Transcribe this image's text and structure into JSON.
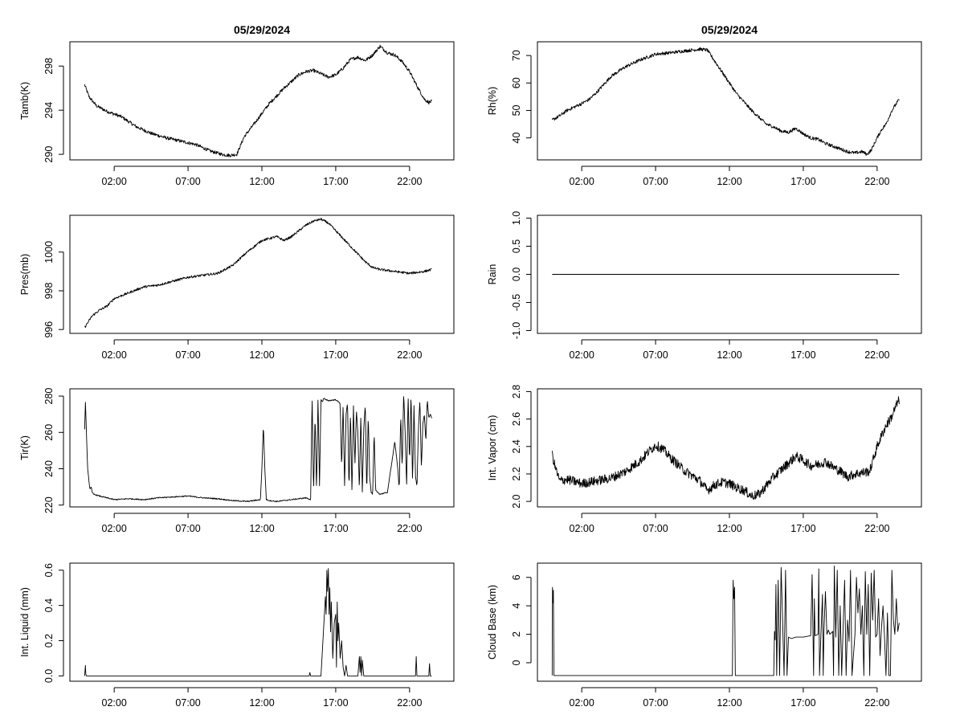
{
  "chart_data": [
    {
      "id": "tamb",
      "type": "line",
      "title": "05/29/2024",
      "ylabel": "Tamb(K)",
      "xlim": [
        -1.0,
        25.0
      ],
      "ylim": [
        289.5,
        300.2
      ],
      "yticks": [
        290,
        294,
        298
      ],
      "ytick_labels": [
        "290",
        "294",
        "298"
      ],
      "xticks": [
        2,
        7,
        12,
        17,
        22
      ],
      "xtick_labels": [
        "02:00",
        "07:00",
        "12:00",
        "17:00",
        "22:00"
      ],
      "noise": 0.15,
      "x": [
        0.0,
        0.3,
        0.8,
        1.5,
        2.5,
        3.5,
        4.5,
        5.5,
        6.5,
        7.5,
        8.5,
        9.3,
        9.8,
        10.3,
        10.8,
        11.5,
        12.5,
        13.5,
        14.5,
        15.0,
        15.5,
        16.0,
        16.5,
        17.0,
        17.5,
        18.0,
        18.5,
        19.0,
        19.5,
        20.0,
        20.5,
        21.0,
        21.5,
        22.0,
        22.5,
        23.0,
        23.3,
        23.5
      ],
      "y": [
        296.3,
        295.2,
        294.4,
        293.9,
        293.4,
        292.5,
        291.9,
        291.5,
        291.2,
        290.9,
        290.3,
        290.0,
        289.9,
        290.0,
        291.6,
        292.8,
        294.6,
        296.0,
        297.2,
        297.5,
        297.6,
        297.3,
        297.0,
        297.2,
        297.8,
        298.6,
        298.8,
        298.5,
        299.0,
        299.8,
        299.2,
        299.0,
        298.4,
        297.5,
        296.2,
        295.0,
        294.7,
        294.8
      ]
    },
    {
      "id": "rh",
      "type": "line",
      "title": "05/29/2024",
      "ylabel": "Rh(%)",
      "xlim": [
        -1.0,
        25.0
      ],
      "ylim": [
        32.0,
        75.0
      ],
      "yticks": [
        40,
        50,
        60,
        70
      ],
      "ytick_labels": [
        "40",
        "50",
        "60",
        "70"
      ],
      "xticks": [
        2,
        7,
        12,
        17,
        22
      ],
      "xtick_labels": [
        "02:00",
        "07:00",
        "12:00",
        "17:00",
        "22:00"
      ],
      "noise": 0.6,
      "x": [
        0.0,
        0.5,
        1.0,
        2.0,
        2.5,
        3.0,
        3.5,
        4.0,
        5.0,
        6.0,
        7.0,
        8.0,
        9.0,
        10.0,
        10.5,
        11.0,
        11.5,
        12.0,
        12.5,
        13.0,
        13.5,
        14.0,
        14.5,
        15.0,
        15.5,
        16.0,
        16.5,
        17.0,
        17.5,
        18.0,
        18.5,
        19.0,
        19.5,
        20.0,
        20.5,
        21.0,
        21.3,
        21.6,
        22.0,
        22.3,
        22.6,
        23.0,
        23.3,
        23.5
      ],
      "y": [
        46.5,
        48.0,
        50.0,
        52.5,
        54.0,
        56.5,
        59.5,
        62.5,
        66.0,
        68.5,
        70.5,
        71.0,
        71.7,
        72.3,
        72.0,
        68.0,
        64.0,
        60.0,
        56.0,
        53.0,
        50.0,
        47.5,
        45.0,
        44.0,
        42.5,
        42.0,
        43.5,
        41.5,
        40.0,
        39.5,
        38.0,
        37.0,
        36.0,
        35.0,
        34.5,
        35.0,
        34.0,
        35.5,
        40.0,
        43.0,
        45.0,
        50.0,
        52.5,
        54.0
      ]
    },
    {
      "id": "pres",
      "type": "line",
      "title": "",
      "ylabel": "Pres(mb)",
      "xlim": [
        -1.0,
        25.0
      ],
      "ylim": [
        995.8,
        1001.9
      ],
      "yticks": [
        996,
        998,
        1000
      ],
      "ytick_labels": [
        "996",
        "998",
        "1000"
      ],
      "xticks": [
        2,
        7,
        12,
        17,
        22
      ],
      "xtick_labels": [
        "02:00",
        "07:00",
        "12:00",
        "17:00",
        "22:00"
      ],
      "noise": 0.06,
      "x": [
        0.0,
        0.5,
        1.0,
        1.5,
        2.0,
        3.0,
        4.0,
        5.0,
        6.0,
        7.0,
        8.0,
        9.0,
        10.0,
        11.0,
        12.0,
        12.5,
        13.0,
        13.5,
        14.0,
        14.5,
        15.0,
        15.5,
        16.0,
        16.5,
        17.0,
        17.5,
        18.0,
        18.5,
        19.0,
        19.5,
        20.0,
        21.0,
        22.0,
        23.0,
        23.5
      ],
      "y": [
        996.1,
        996.7,
        997.0,
        997.2,
        997.6,
        997.9,
        998.2,
        998.3,
        998.5,
        998.7,
        998.8,
        998.9,
        999.3,
        1000.0,
        1000.6,
        1000.7,
        1000.8,
        1000.6,
        1000.8,
        1001.1,
        1001.4,
        1001.6,
        1001.7,
        1001.5,
        1001.1,
        1000.7,
        1000.3,
        999.9,
        999.5,
        999.2,
        999.1,
        999.0,
        998.9,
        999.0,
        999.1
      ]
    },
    {
      "id": "rain",
      "type": "line",
      "title": "",
      "ylabel": "Rain",
      "xlim": [
        -1.0,
        25.0
      ],
      "ylim": [
        -1.05,
        1.05
      ],
      "yticks": [
        -1.0,
        -0.5,
        0.0,
        0.5,
        1.0
      ],
      "ytick_labels": [
        "-1.0",
        "-0.5",
        "0.0",
        "0.5",
        "1.0"
      ],
      "xticks": [
        2,
        7,
        12,
        17,
        22
      ],
      "xtick_labels": [
        "02:00",
        "07:00",
        "12:00",
        "17:00",
        "22:00"
      ],
      "noise": 0.0,
      "x": [
        0.0,
        23.5
      ],
      "y": [
        0.0,
        0.0
      ]
    },
    {
      "id": "tir",
      "type": "line",
      "title": "",
      "ylabel": "Tir(K)",
      "xlim": [
        -1.0,
        25.0
      ],
      "ylim": [
        219.0,
        284.0
      ],
      "yticks": [
        220,
        240,
        260,
        280
      ],
      "ytick_labels": [
        "220",
        "240",
        "260",
        "280"
      ],
      "xticks": [
        2,
        7,
        12,
        17,
        22
      ],
      "xtick_labels": [
        "02:00",
        "07:00",
        "12:00",
        "17:00",
        "22:00"
      ],
      "noise": 0.3,
      "x": [
        0.0,
        0.05,
        0.1,
        0.2,
        0.35,
        0.45,
        0.5,
        0.6,
        1.0,
        2.0,
        3.0,
        4.0,
        5.0,
        6.0,
        7.0,
        8.0,
        9.0,
        10.0,
        11.0,
        11.9,
        12.0,
        12.1,
        12.2,
        12.3,
        12.5,
        13.0,
        14.0,
        15.0,
        15.3,
        15.4,
        15.5,
        15.6,
        15.7,
        15.8,
        15.9,
        16.0,
        16.1,
        16.2,
        16.3,
        16.5,
        17.0,
        17.3,
        17.4,
        17.5,
        17.6,
        17.7,
        17.8,
        17.9,
        18.0,
        18.1,
        18.2,
        18.3,
        18.4,
        18.5,
        18.6,
        18.7,
        18.8,
        18.9,
        19.0,
        19.1,
        19.2,
        19.3,
        19.4,
        19.5,
        19.6,
        19.7,
        20.0,
        20.5,
        21.0,
        21.2,
        21.3,
        21.4,
        21.5,
        21.6,
        21.7,
        21.8,
        21.9,
        22.0,
        22.1,
        22.2,
        22.3,
        22.4,
        22.5,
        22.6,
        22.7,
        22.8,
        22.9,
        23.0,
        23.1,
        23.2,
        23.3,
        23.4,
        23.5
      ],
      "y": [
        262,
        277,
        265,
        240,
        229,
        230,
        227,
        226,
        225,
        223,
        223.5,
        223,
        224,
        224.5,
        225,
        224,
        223.5,
        222.5,
        222,
        223,
        240,
        264,
        240,
        223,
        222.5,
        222,
        223,
        224,
        223,
        280,
        226,
        270,
        228,
        279,
        230,
        278,
        277,
        279,
        278,
        277.5,
        278,
        276,
        240,
        276,
        230,
        270,
        276,
        228,
        272,
        226,
        275,
        242,
        272,
        260,
        228,
        270,
        227,
        262,
        276,
        226,
        270,
        235,
        227,
        226,
        260,
        228,
        226,
        227,
        255,
        240,
        229,
        270,
        240,
        282,
        260,
        230,
        281,
        243,
        282,
        232,
        275,
        236,
        230,
        262,
        278,
        240,
        265,
        270,
        255,
        278,
        268,
        270,
        268
      ]
    },
    {
      "id": "vapor",
      "type": "line",
      "title": "",
      "ylabel": "Int. Vapor (cm)",
      "xlim": [
        -1.0,
        25.0
      ],
      "ylim": [
        1.96,
        2.82
      ],
      "yticks": [
        2.0,
        2.2,
        2.4,
        2.6,
        2.8
      ],
      "ytick_labels": [
        "2.0",
        "2.2",
        "2.4",
        "2.6",
        "2.8"
      ],
      "xticks": [
        2,
        7,
        12,
        17,
        22
      ],
      "xtick_labels": [
        "02:00",
        "07:00",
        "12:00",
        "17:00",
        "22:00"
      ],
      "noise": 0.035,
      "x": [
        0.0,
        0.2,
        0.5,
        1.0,
        2.0,
        3.0,
        4.0,
        5.0,
        6.0,
        6.5,
        7.0,
        7.5,
        8.0,
        9.0,
        10.0,
        10.5,
        11.0,
        11.5,
        12.0,
        12.5,
        13.0,
        13.5,
        14.0,
        15.0,
        16.0,
        16.5,
        17.0,
        17.5,
        18.0,
        18.5,
        19.0,
        19.5,
        20.0,
        20.5,
        21.0,
        21.5,
        22.0,
        22.3,
        22.6,
        23.0,
        23.3,
        23.5
      ],
      "y": [
        2.34,
        2.25,
        2.15,
        2.16,
        2.13,
        2.15,
        2.17,
        2.22,
        2.3,
        2.36,
        2.41,
        2.38,
        2.32,
        2.22,
        2.15,
        2.08,
        2.12,
        2.14,
        2.13,
        2.1,
        2.08,
        2.04,
        2.05,
        2.18,
        2.28,
        2.33,
        2.3,
        2.26,
        2.27,
        2.29,
        2.25,
        2.22,
        2.18,
        2.2,
        2.21,
        2.22,
        2.4,
        2.48,
        2.55,
        2.62,
        2.7,
        2.74
      ]
    },
    {
      "id": "liquid",
      "type": "line",
      "title": "",
      "ylabel": "Int. Liquid (mm)",
      "xlim": [
        -1.0,
        25.0
      ],
      "ylim": [
        -0.03,
        0.64
      ],
      "yticks": [
        0.0,
        0.2,
        0.4,
        0.6
      ],
      "ytick_labels": [
        "0.0",
        "0.2",
        "0.4",
        "0.6"
      ],
      "xticks": [
        2,
        7,
        12,
        17,
        22
      ],
      "xtick_labels": [
        "02:00",
        "07:00",
        "12:00",
        "17:00",
        "22:00"
      ],
      "noise": 0.0,
      "x": [
        0.0,
        0.05,
        0.08,
        0.12,
        15.2,
        15.25,
        15.3,
        16.0,
        16.1,
        16.2,
        16.3,
        16.35,
        16.4,
        16.45,
        16.5,
        16.55,
        16.6,
        16.65,
        16.7,
        16.8,
        16.9,
        17.0,
        17.05,
        17.1,
        17.15,
        17.2,
        17.3,
        17.4,
        17.5,
        17.6,
        17.7,
        17.8,
        17.9,
        18.5,
        18.6,
        18.65,
        18.7,
        18.75,
        18.8,
        18.9,
        22.4,
        22.45,
        22.5,
        23.3,
        23.35,
        23.4,
        23.5
      ],
      "y": [
        0.0,
        0.06,
        0.01,
        0.0,
        0.0,
        0.02,
        0.0,
        0.0,
        0.15,
        0.3,
        0.45,
        0.35,
        0.6,
        0.48,
        0.61,
        0.35,
        0.5,
        0.25,
        0.42,
        0.1,
        0.3,
        0.35,
        0.05,
        0.42,
        0.2,
        0.3,
        0.1,
        0.2,
        0.05,
        0.0,
        0.06,
        0.0,
        0.0,
        0.0,
        0.11,
        0.02,
        0.11,
        0.0,
        0.09,
        0.0,
        0.0,
        0.11,
        0.0,
        0.0,
        0.07,
        0.0,
        0.0
      ]
    },
    {
      "id": "cloud",
      "type": "line",
      "title": "",
      "ylabel": "Cloud Base (km)",
      "xlim": [
        -1.0,
        25.0
      ],
      "ylim": [
        -1.3,
        7.0
      ],
      "yticks": [
        0,
        2,
        4,
        6
      ],
      "ytick_labels": [
        "0",
        "2",
        "4",
        "6"
      ],
      "xticks": [
        2,
        7,
        12,
        17,
        22
      ],
      "xtick_labels": [
        "02:00",
        "07:00",
        "12:00",
        "17:00",
        "22:00"
      ],
      "noise": 0.0,
      "x": [
        0.0,
        0.02,
        0.05,
        0.08,
        0.12,
        0.15,
        12.2,
        12.25,
        12.3,
        12.35,
        12.4,
        15.0,
        15.05,
        15.1,
        15.15,
        15.2,
        15.3,
        15.4,
        15.5,
        15.6,
        15.7,
        15.8,
        15.9,
        16.0,
        16.2,
        16.5,
        17.0,
        17.5,
        17.6,
        17.7,
        17.75,
        17.8,
        18.0,
        18.05,
        18.1,
        18.2,
        18.3,
        18.35,
        18.4,
        18.5,
        18.6,
        18.7,
        18.8,
        19.0,
        19.05,
        19.1,
        19.2,
        19.3,
        19.4,
        19.5,
        19.6,
        19.7,
        19.8,
        19.9,
        20.0,
        20.1,
        20.2,
        20.3,
        20.5,
        20.6,
        20.7,
        20.8,
        20.9,
        21.0,
        21.1,
        21.2,
        21.3,
        21.4,
        21.5,
        21.6,
        21.7,
        21.8,
        21.9,
        22.0,
        22.1,
        22.2,
        22.3,
        22.4,
        22.5,
        22.6,
        22.7,
        22.8,
        22.9,
        23.0,
        23.1,
        23.2,
        23.3,
        23.4,
        23.5
      ],
      "y": [
        -0.9,
        5.3,
        4.2,
        5.1,
        -0.9,
        -0.9,
        -0.9,
        5.8,
        4.5,
        5.3,
        -0.9,
        -0.9,
        2.2,
        1.6,
        5.5,
        -0.9,
        5.8,
        -0.9,
        6.7,
        3.0,
        -0.9,
        6.5,
        -0.9,
        1.8,
        1.7,
        1.8,
        1.8,
        1.9,
        6.2,
        -0.9,
        4.5,
        1.9,
        2.0,
        6.6,
        -0.9,
        2.1,
        4.8,
        -0.9,
        2.2,
        5.0,
        2.0,
        2.3,
        2.0,
        2.2,
        -0.9,
        6.8,
        1.8,
        6.5,
        -0.9,
        4.0,
        -0.9,
        2.5,
        5.8,
        -0.9,
        3.0,
        1.5,
        6.5,
        -0.9,
        2.0,
        6.0,
        3.5,
        5.2,
        2.0,
        4.0,
        -0.9,
        6.4,
        2.0,
        5.5,
        -0.9,
        6.3,
        3.0,
        6.5,
        1.8,
        2.0,
        4.5,
        0.5,
        2.5,
        4.0,
        1.8,
        -0.9,
        3.5,
        -0.9,
        -0.9,
        6.5,
        3.0,
        2.0,
        4.5,
        2.2,
        2.8
      ]
    }
  ]
}
